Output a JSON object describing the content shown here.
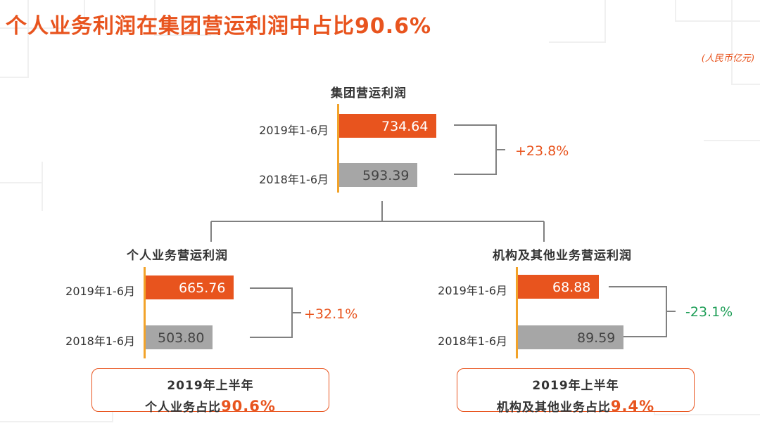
{
  "title": "个人业务利润在集团营运利润中占比90.6%",
  "unit": "(人民币亿元)",
  "colors": {
    "accent": "#e8541e",
    "prev": "#a6a6a6",
    "axis": "#f2a32a",
    "positive": "#e8541e",
    "negative": "#1e9e57"
  },
  "chart_data": [
    {
      "type": "bar",
      "title": "集团营运利润",
      "categories": [
        "2019年1-6月",
        "2018年1-6月"
      ],
      "values": [
        734.64,
        593.39
      ],
      "value_labels": [
        "734.64",
        "593.39"
      ],
      "growth": "+23.8%"
    },
    {
      "type": "bar",
      "title": "个人业务营运利润",
      "categories": [
        "2019年1-6月",
        "2018年1-6月"
      ],
      "values": [
        665.76,
        503.8
      ],
      "value_labels": [
        "665.76",
        "503.80"
      ],
      "growth": "+32.1%"
    },
    {
      "type": "bar",
      "title": "机构及其他业务营运利润",
      "categories": [
        "2019年1-6月",
        "2018年1-6月"
      ],
      "values": [
        68.88,
        89.59
      ],
      "value_labels": [
        "68.88",
        "89.59"
      ],
      "growth": "-23.1%"
    }
  ],
  "summary_left": {
    "line1": "2019年上半年",
    "label": "个人业务占比",
    "value": "90.6%"
  },
  "summary_right": {
    "line1": "2019年上半年",
    "label": "机构及其他业务占比",
    "value": "9.4%"
  }
}
